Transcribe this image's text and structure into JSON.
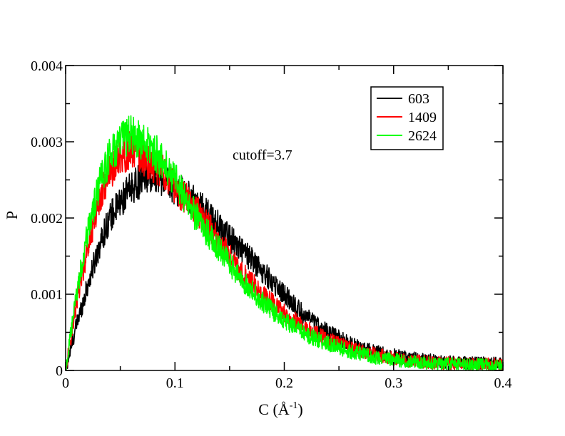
{
  "chart_data": {
    "type": "line",
    "xlabel": "C (Å",
    "xlabel_sup": "-1",
    "xlabel_close": ")",
    "ylabel": "P",
    "xlim": [
      0,
      0.4
    ],
    "ylim": [
      0,
      0.004
    ],
    "x_ticks": [
      {
        "value": 0,
        "label": "0"
      },
      {
        "value": 0.1,
        "label": "0.1"
      },
      {
        "value": 0.2,
        "label": "0.2"
      },
      {
        "value": 0.3,
        "label": "0.3"
      },
      {
        "value": 0.4,
        "label": "0.4"
      }
    ],
    "y_ticks": [
      {
        "value": 0,
        "label": "0"
      },
      {
        "value": 0.001,
        "label": "0.001"
      },
      {
        "value": 0.002,
        "label": "0.002"
      },
      {
        "value": 0.003,
        "label": "0.003"
      },
      {
        "value": 0.004,
        "label": "0.004"
      }
    ],
    "annotation": "cutoff=3.7",
    "grid": false,
    "legend_position": "top-right",
    "series": [
      {
        "name": "603",
        "color": "#000000",
        "x": [
          0,
          0.01,
          0.02,
          0.03,
          0.04,
          0.05,
          0.06,
          0.07,
          0.08,
          0.09,
          0.1,
          0.12,
          0.14,
          0.16,
          0.18,
          0.2,
          0.22,
          0.24,
          0.26,
          0.28,
          0.3,
          0.32,
          0.34,
          0.36,
          0.38,
          0.4
        ],
        "y": [
          0,
          0.0006,
          0.0011,
          0.0016,
          0.002,
          0.0022,
          0.0024,
          0.0025,
          0.0026,
          0.0025,
          0.0024,
          0.0022,
          0.0019,
          0.0016,
          0.0013,
          0.001,
          0.0007,
          0.0005,
          0.00035,
          0.00025,
          0.0002,
          0.00015,
          0.00012,
          0.0001,
          0.0001,
          9e-05
        ]
      },
      {
        "name": "1409",
        "color": "#ff0000",
        "x": [
          0,
          0.01,
          0.02,
          0.03,
          0.04,
          0.05,
          0.06,
          0.07,
          0.08,
          0.09,
          0.1,
          0.12,
          0.14,
          0.16,
          0.18,
          0.2,
          0.22,
          0.24,
          0.26,
          0.28,
          0.3,
          0.32,
          0.34,
          0.36,
          0.38,
          0.4
        ],
        "y": [
          0,
          0.0009,
          0.0016,
          0.0022,
          0.0026,
          0.0028,
          0.0029,
          0.0028,
          0.0027,
          0.0026,
          0.0024,
          0.0021,
          0.0017,
          0.0013,
          0.001,
          0.00075,
          0.00055,
          0.0004,
          0.0003,
          0.00022,
          0.00016,
          0.00012,
          0.0001,
          9e-05,
          8e-05,
          8e-05
        ]
      },
      {
        "name": "2624",
        "color": "#00ff00",
        "x": [
          0,
          0.01,
          0.02,
          0.03,
          0.04,
          0.05,
          0.06,
          0.07,
          0.08,
          0.09,
          0.1,
          0.12,
          0.14,
          0.16,
          0.18,
          0.2,
          0.22,
          0.24,
          0.26,
          0.28,
          0.3,
          0.32,
          0.34,
          0.36,
          0.38,
          0.4
        ],
        "y": [
          0,
          0.001,
          0.0018,
          0.0024,
          0.0028,
          0.003,
          0.0031,
          0.003,
          0.0029,
          0.0027,
          0.0025,
          0.002,
          0.0016,
          0.0012,
          0.0009,
          0.00065,
          0.00047,
          0.00035,
          0.00025,
          0.00018,
          0.00014,
          0.00011,
          9e-05,
          8e-05,
          7e-05,
          7e-05
        ]
      }
    ]
  }
}
